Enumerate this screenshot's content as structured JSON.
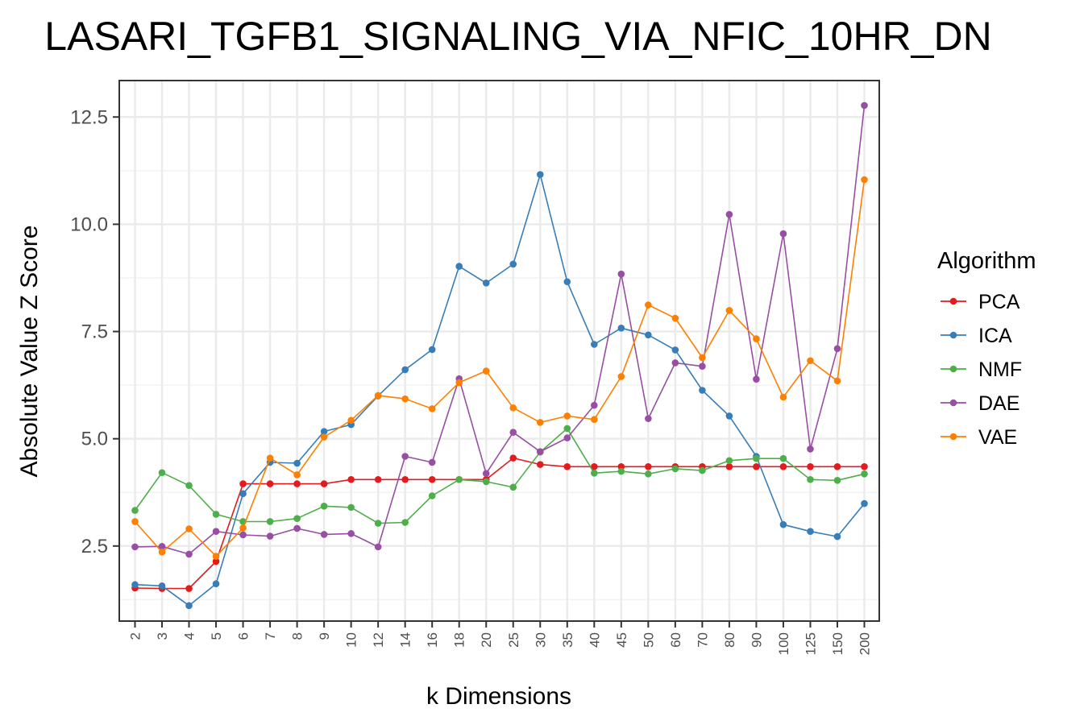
{
  "chart_data": {
    "type": "line",
    "title": "LASARI_TGFB1_SIGNALING_VIA_NFIC_10HR_DN",
    "xlabel": "k Dimensions",
    "ylabel": "Absolute Value Z Score",
    "ylim": [
      0.75,
      13.35
    ],
    "yticks": [
      2.5,
      5.0,
      7.5,
      10.0,
      12.5
    ],
    "ytick_labels": [
      "2.5",
      "5.0",
      "7.5",
      "10.0",
      "12.5"
    ],
    "grid": true,
    "legend": {
      "title": "Algorithm",
      "position": "right"
    },
    "categories": [
      "2",
      "3",
      "4",
      "5",
      "6",
      "7",
      "8",
      "9",
      "10",
      "12",
      "14",
      "16",
      "18",
      "20",
      "25",
      "30",
      "35",
      "40",
      "45",
      "50",
      "60",
      "70",
      "80",
      "90",
      "100",
      "125",
      "150",
      "200"
    ],
    "series": [
      {
        "name": "PCA",
        "color": "#e41a1c",
        "values": [
          1.52,
          1.51,
          1.51,
          2.14,
          3.95,
          3.95,
          3.95,
          3.95,
          4.05,
          4.05,
          4.05,
          4.05,
          4.05,
          4.05,
          4.55,
          4.4,
          4.35,
          4.35,
          4.35,
          4.35,
          4.35,
          4.35,
          4.35,
          4.35,
          4.35,
          4.35,
          4.35,
          4.35
        ]
      },
      {
        "name": "ICA",
        "color": "#377eb8",
        "values": [
          1.6,
          1.57,
          1.11,
          1.62,
          3.72,
          4.45,
          4.43,
          5.17,
          5.33,
          6.0,
          6.61,
          7.08,
          9.02,
          8.63,
          9.07,
          11.16,
          8.66,
          7.2,
          7.58,
          7.42,
          7.07,
          6.13,
          5.53,
          4.59,
          3.0,
          2.84,
          2.72,
          3.49
        ]
      },
      {
        "name": "NMF",
        "color": "#4daf4a",
        "values": [
          3.33,
          4.21,
          3.91,
          3.24,
          3.07,
          3.07,
          3.14,
          3.43,
          3.4,
          3.03,
          3.05,
          3.67,
          4.05,
          4.0,
          3.87,
          4.69,
          5.24,
          4.2,
          4.24,
          4.18,
          4.3,
          4.26,
          4.49,
          4.54,
          4.54,
          4.05,
          4.03,
          4.18
        ]
      },
      {
        "name": "DAE",
        "color": "#984ea3",
        "values": [
          2.48,
          2.49,
          2.31,
          2.84,
          2.76,
          2.73,
          2.91,
          2.77,
          2.79,
          2.48,
          4.59,
          4.45,
          6.4,
          4.19,
          5.15,
          4.7,
          5.02,
          5.78,
          8.84,
          5.47,
          6.77,
          6.69,
          10.23,
          6.39,
          9.78,
          4.76,
          7.1,
          12.77
        ]
      },
      {
        "name": "VAE",
        "color": "#ff7f00",
        "values": [
          3.07,
          2.36,
          2.9,
          2.26,
          2.92,
          4.55,
          4.16,
          5.04,
          5.43,
          6.01,
          5.93,
          5.7,
          6.31,
          6.58,
          5.72,
          5.38,
          5.53,
          5.45,
          6.45,
          8.12,
          7.81,
          6.89,
          7.99,
          7.33,
          5.97,
          6.82,
          6.35,
          11.04
        ]
      }
    ]
  }
}
